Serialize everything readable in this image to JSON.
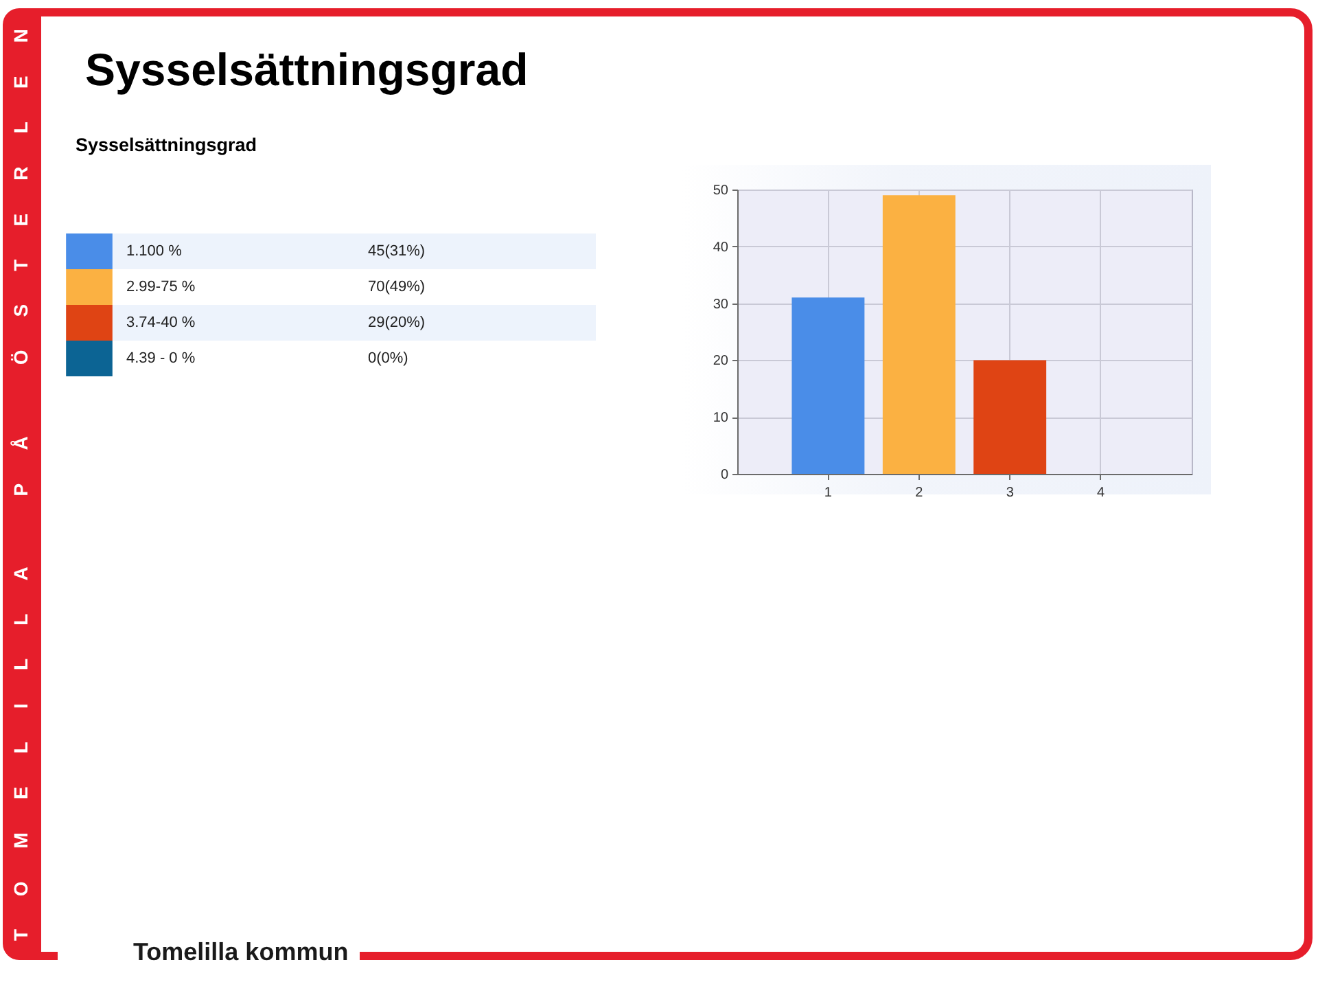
{
  "chart_data": {
    "type": "bar",
    "title": "Sysselsättningsgrad",
    "subtitle": "Sysselsättningsgrad",
    "categories": [
      "1",
      "2",
      "3",
      "4"
    ],
    "stacked": true,
    "series": [
      {
        "name": "1.100 %",
        "color": "#4a8de8",
        "values": [
          31,
          null,
          null,
          null
        ]
      },
      {
        "name": "2.99-75 %",
        "color": "#fbb142",
        "values": [
          null,
          49,
          null,
          null
        ]
      },
      {
        "name": "3.74-40 %",
        "color": "#df4414",
        "values": [
          null,
          null,
          20,
          null
        ]
      },
      {
        "name": "4.39 - 0 %",
        "color": "#0c6494",
        "values": [
          null,
          null,
          null,
          0
        ]
      }
    ],
    "ylim": [
      0,
      50
    ],
    "yticks": [
      0,
      10,
      20,
      30,
      40,
      50
    ],
    "grid": true,
    "legend": "left",
    "annotations": [
      "TOMELILLA PÅ ÖSTERLEN",
      "Tomelilla kommun",
      "45(31%)",
      "70(49%)",
      "29(20%)",
      "0(0%)"
    ]
  }
}
